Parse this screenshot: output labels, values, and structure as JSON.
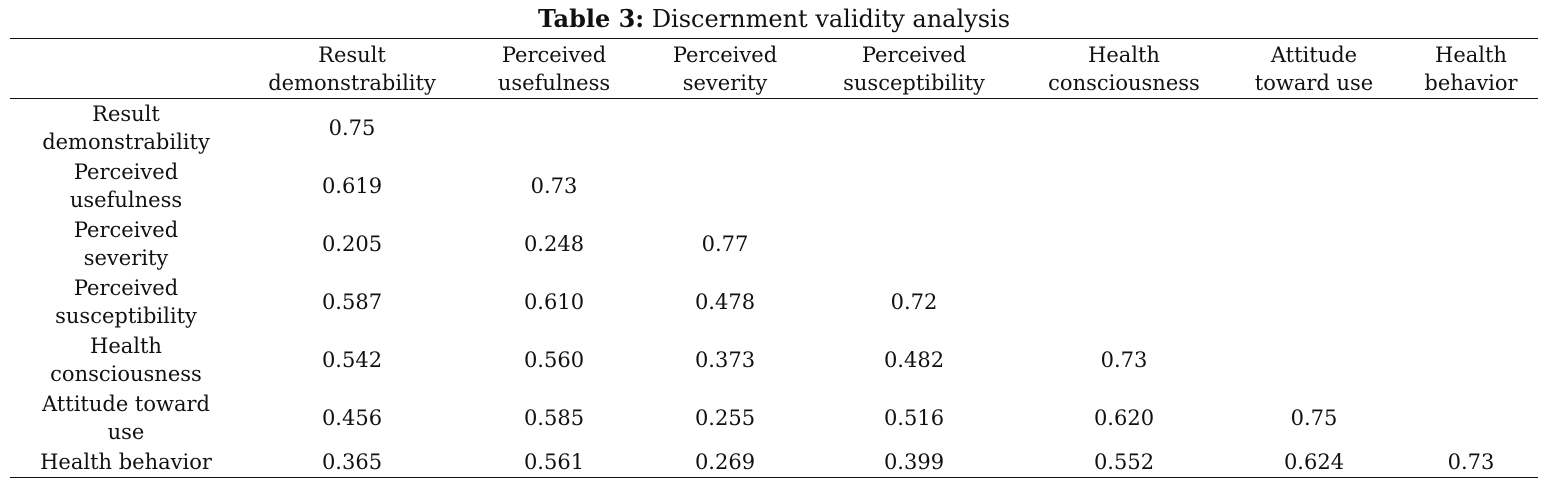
{
  "caption": {
    "label": "Table 3:",
    "text": "Discernment validity analysis"
  },
  "table": {
    "columns": [
      {
        "line1": "Result",
        "line2": "demonstrability"
      },
      {
        "line1": "Perceived",
        "line2": "usefulness"
      },
      {
        "line1": "Perceived",
        "line2": "severity"
      },
      {
        "line1": "Perceived",
        "line2": "susceptibility"
      },
      {
        "line1": "Health",
        "line2": "consciousness"
      },
      {
        "line1": "Attitude",
        "line2": "toward use"
      },
      {
        "line1": "Health",
        "line2": "behavior"
      }
    ],
    "rows": [
      {
        "line1": "Result",
        "line2": "demonstrability",
        "values": [
          "0.75",
          "",
          "",
          "",
          "",
          "",
          ""
        ]
      },
      {
        "line1": "Perceived",
        "line2": "usefulness",
        "values": [
          "0.619",
          "0.73",
          "",
          "",
          "",
          "",
          ""
        ]
      },
      {
        "line1": "Perceived",
        "line2": "severity",
        "values": [
          "0.205",
          "0.248",
          "0.77",
          "",
          "",
          "",
          ""
        ]
      },
      {
        "line1": "Perceived",
        "line2": "susceptibility",
        "values": [
          "0.587",
          "0.610",
          "0.478",
          "0.72",
          "",
          "",
          ""
        ]
      },
      {
        "line1": "Health",
        "line2": "consciousness",
        "values": [
          "0.542",
          "0.560",
          "0.373",
          "0.482",
          "0.73",
          "",
          ""
        ]
      },
      {
        "line1": "Attitude toward",
        "line2": "use",
        "values": [
          "0.456",
          "0.585",
          "0.255",
          "0.516",
          "0.620",
          "0.75",
          ""
        ]
      },
      {
        "line1": "Health behavior",
        "line2": "",
        "values": [
          "0.365",
          "0.561",
          "0.269",
          "0.399",
          "0.552",
          "0.624",
          "0.73"
        ]
      }
    ]
  }
}
